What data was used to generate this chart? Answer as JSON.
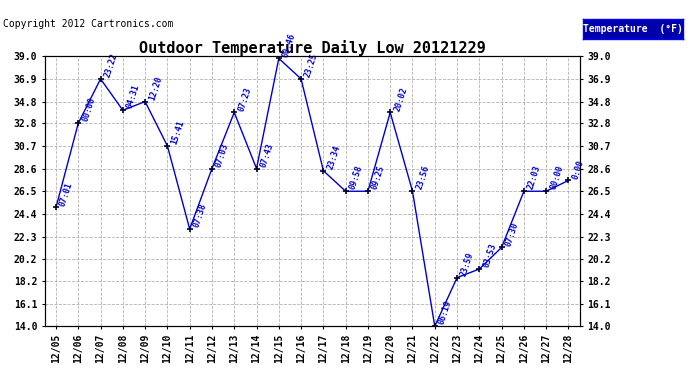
{
  "title": "Outdoor Temperature Daily Low 20121229",
  "copyright": "Copyright 2012 Cartronics.com",
  "legend_label": "Temperature  (°F)",
  "dates": [
    "12/05",
    "12/06",
    "12/07",
    "12/08",
    "12/09",
    "12/10",
    "12/11",
    "12/12",
    "12/13",
    "12/14",
    "12/15",
    "12/16",
    "12/17",
    "12/18",
    "12/19",
    "12/20",
    "12/21",
    "12/22",
    "12/23",
    "12/24",
    "12/25",
    "12/26",
    "12/27",
    "12/28"
  ],
  "values": [
    25.0,
    32.8,
    36.9,
    34.0,
    34.8,
    30.7,
    23.0,
    28.6,
    33.8,
    28.6,
    38.8,
    36.9,
    28.4,
    26.5,
    26.5,
    33.8,
    26.5,
    14.0,
    18.5,
    19.3,
    21.3,
    26.5,
    26.5,
    27.5
  ],
  "time_labels": [
    "07:01",
    "00:00",
    "23:22",
    "04:31",
    "12:20",
    "15:41",
    "07:38",
    "07:03",
    "07:23",
    "07:43",
    "00:46",
    "23:25",
    "23:34",
    "09:58",
    "09:25",
    "20:02",
    "23:56",
    "06:19",
    "23:59",
    "03:53",
    "07:30",
    "22:03",
    "00:00",
    "0:00"
  ],
  "ylim": [
    14.0,
    39.0
  ],
  "yticks": [
    14.0,
    16.1,
    18.2,
    20.2,
    22.3,
    24.4,
    26.5,
    28.6,
    30.7,
    32.8,
    34.8,
    36.9,
    39.0
  ],
  "line_color": "#0000cc",
  "marker_color": "#000033",
  "grid_color": "#aaaaaa",
  "bg_color": "#ffffff",
  "title_color": "#000000",
  "label_color": "#0000cc",
  "legend_bg": "#0000aa",
  "legend_text_color": "#ffffff",
  "title_fontsize": 11,
  "tick_fontsize": 7,
  "label_fontsize": 6,
  "copyright_fontsize": 7
}
